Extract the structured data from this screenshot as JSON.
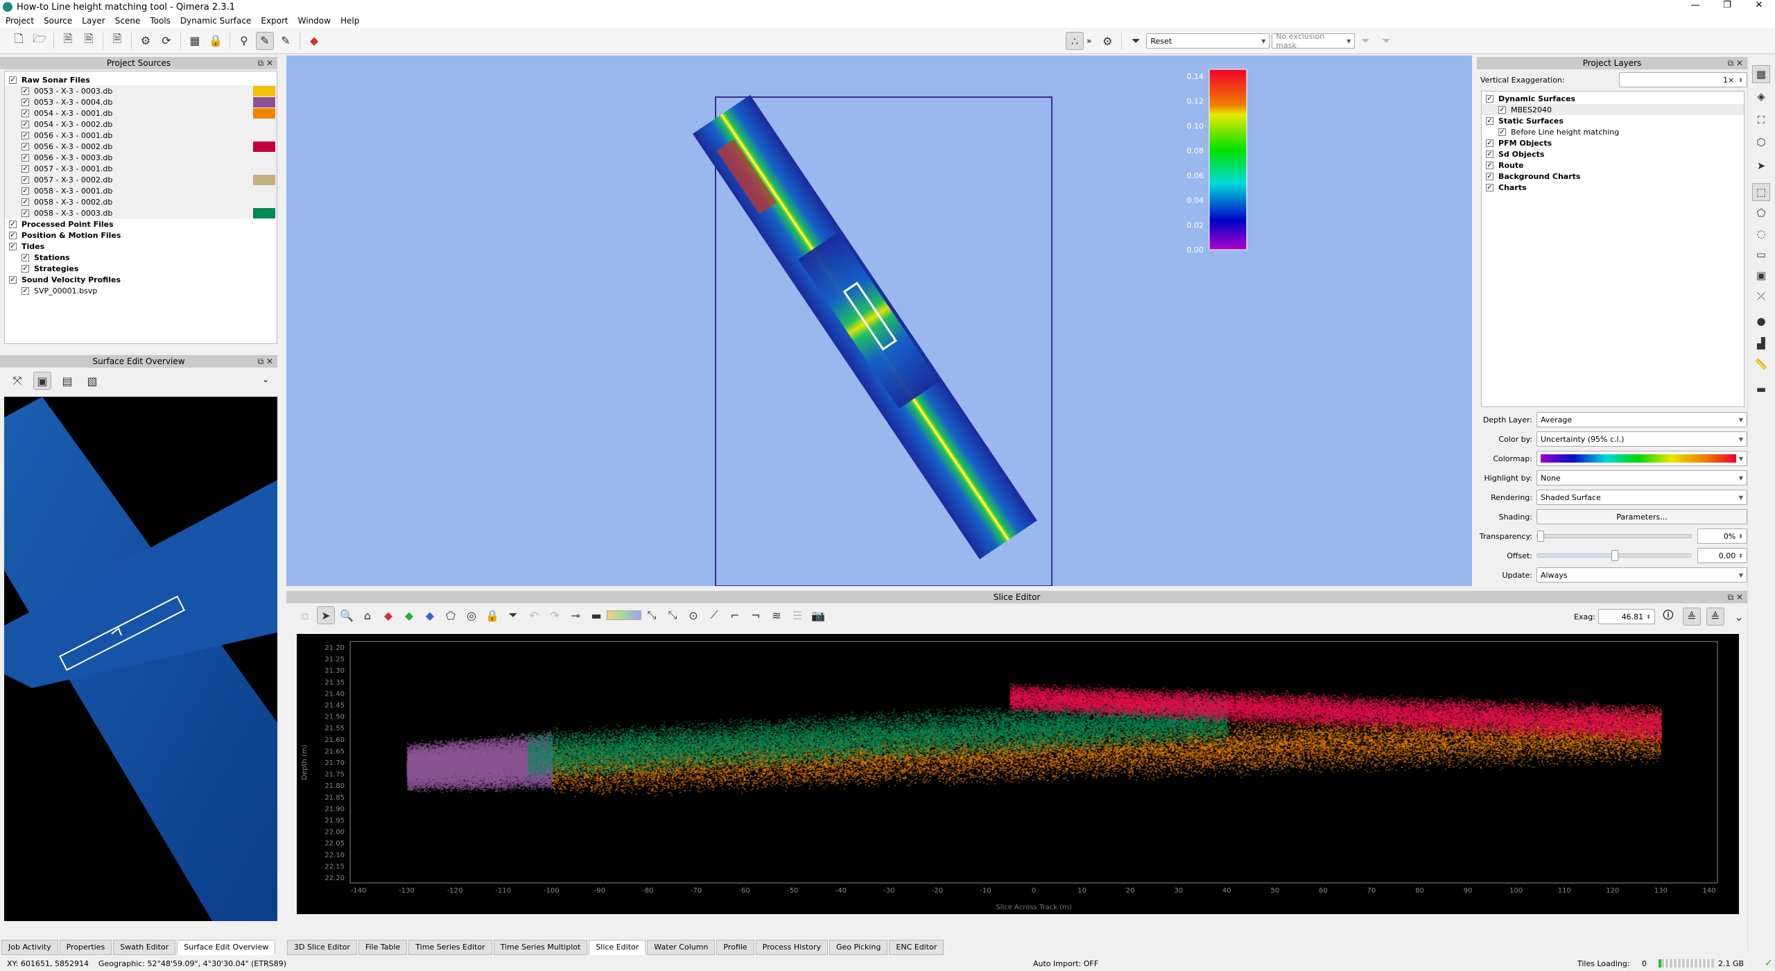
{
  "window": {
    "title": "How-to Line height matching tool - Qimera 2.3.1",
    "controls": [
      "—",
      "❐",
      "✕"
    ]
  },
  "menu": [
    "Project",
    "Source",
    "Layer",
    "Scene",
    "Tools",
    "Dynamic Surface",
    "Export",
    "Window",
    "Help"
  ],
  "toolbar": {
    "filter_value": "Reset",
    "exclusion_mask": "No exclusion mask",
    "more": "»"
  },
  "project_sources": {
    "title": "Project Sources",
    "raw_label": "Raw Sonar Files",
    "files": [
      {
        "name": "0053 - X-3 - 0003.db",
        "color": "#f2c200"
      },
      {
        "name": "0053 - X-3 - 0004.db",
        "color": "#8a5493"
      },
      {
        "name": "0054 - X-3 - 0001.db",
        "color": "#f08400"
      },
      {
        "name": "0054 - X-3 - 0002.db",
        "color": ""
      },
      {
        "name": "0056 - X-3 - 0001.db",
        "color": ""
      },
      {
        "name": "0056 - X-3 - 0002.db",
        "color": "#c2003a"
      },
      {
        "name": "0056 - X-3 - 0003.db",
        "color": ""
      },
      {
        "name": "0057 - X-3 - 0001.db",
        "color": ""
      },
      {
        "name": "0057 - X-3 - 0002.db",
        "color": "#c2b080"
      },
      {
        "name": "0058 - X-3 - 0001.db",
        "color": ""
      },
      {
        "name": "0058 - X-3 - 0002.db",
        "color": ""
      },
      {
        "name": "0058 - X-3 - 0003.db",
        "color": "#008a55"
      }
    ],
    "processed": "Processed Point Files",
    "position": "Position & Motion Files",
    "tides": "Tides",
    "stations": "Stations",
    "strategies": "Strategies",
    "svp": "Sound Velocity Profiles",
    "svp_file": "SVP_00001.bsvp"
  },
  "surface_overview": {
    "title": "Surface Edit Overview"
  },
  "colorbar": {
    "ticks": [
      "0.14",
      "0.12",
      "0.10",
      "0.08",
      "0.06",
      "0.04",
      "0.02",
      "0.00"
    ]
  },
  "project_layers": {
    "title": "Project Layers",
    "vert_exag_label": "Vertical Exaggeration:",
    "vert_exag_value": "1×",
    "items": [
      {
        "label": "Dynamic Surfaces",
        "bold": true,
        "indent": 0
      },
      {
        "label": "MBES2040",
        "bold": false,
        "indent": 1
      },
      {
        "label": "Static Surfaces",
        "bold": true,
        "indent": 0
      },
      {
        "label": "Before Line height matching",
        "bold": false,
        "indent": 1
      },
      {
        "label": "PFM Objects",
        "bold": true,
        "indent": 0
      },
      {
        "label": "Sd Objects",
        "bold": true,
        "indent": 0
      },
      {
        "label": "Route",
        "bold": true,
        "indent": 0
      },
      {
        "label": "Background Charts",
        "bold": true,
        "indent": 0
      },
      {
        "label": "Charts",
        "bold": true,
        "indent": 0
      }
    ],
    "depth_layer_label": "Depth Layer:",
    "depth_layer": "Average",
    "color_by_label": "Color by:",
    "color_by": "Uncertainty (95% c.l.)",
    "colormap_label": "Colormap:",
    "highlight_label": "Highlight by:",
    "highlight": "None",
    "rendering_label": "Rendering:",
    "rendering": "Shaded Surface",
    "shading_label": "Shading:",
    "shading_button": "Parameters...",
    "transparency_label": "Transparency:",
    "transparency": "0%",
    "transparency_pct": 0,
    "offset_label": "Offset:",
    "offset": "0.00",
    "update_label": "Update:",
    "update": "Always"
  },
  "slice_editor": {
    "title": "Slice Editor",
    "exag_label": "Exag:",
    "exag_value": "46.81"
  },
  "chart_data": {
    "type": "scatter",
    "xlabel": "Slice Across Track (m)",
    "ylabel": "Depth (m)",
    "xlim": [
      -140,
      140
    ],
    "ylim": [
      21.2,
      22.2
    ],
    "y_inverted": true,
    "xticks": [
      "-140",
      "-130",
      "-120",
      "-110",
      "-100",
      "-90",
      "-80",
      "-70",
      "-60",
      "-50",
      "-40",
      "-30",
      "-20",
      "-10",
      "0",
      "10",
      "20",
      "30",
      "40",
      "50",
      "60",
      "70",
      "80",
      "90",
      "100",
      "110",
      "120",
      "130",
      "140"
    ],
    "yticks": [
      "21.20",
      "21.25",
      "21.30",
      "21.35",
      "21.40",
      "21.45",
      "21.50",
      "21.55",
      "21.60",
      "21.65",
      "21.70",
      "21.75",
      "21.80",
      "21.85",
      "21.90",
      "21.95",
      "22.00",
      "22.05",
      "22.10",
      "22.15",
      "22.20"
    ],
    "series": [
      {
        "color": "#8a5493",
        "x": [
          -130,
          -100
        ],
        "depth_top": [
          21.62,
          21.57
        ],
        "depth_bottom": [
          21.82,
          21.82
        ]
      },
      {
        "color": "#f08400",
        "x": [
          -100,
          130
        ],
        "depth_top": [
          21.6,
          21.45
        ],
        "depth_bottom": [
          21.85,
          21.7
        ]
      },
      {
        "color": "#008a55",
        "x": [
          -105,
          40
        ],
        "depth_top": [
          21.56,
          21.4
        ],
        "depth_bottom": [
          21.78,
          21.62
        ]
      },
      {
        "color": "#e0104a",
        "x": [
          -5,
          130
        ],
        "depth_top": [
          21.36,
          21.45
        ],
        "depth_bottom": [
          21.48,
          21.62
        ]
      }
    ]
  },
  "bottom_tabs_left": [
    "Job Activity",
    "Properties",
    "Swath Editor",
    "Surface Edit Overview"
  ],
  "bottom_tabs_main": [
    "3D Slice Editor",
    "File Table",
    "Time Series Editor",
    "Time Series Multiplot",
    "Slice Editor",
    "Water Column",
    "Profile",
    "Process History",
    "Geo Picking",
    "ENC Editor"
  ],
  "status": {
    "xy": "XY: 601651, 5852914",
    "geo": "Geographic: 52°48'59.09\", 4°30'30.04\" (ETRS89)",
    "auto_import": "Auto Import: OFF",
    "tiles_label": "Tiles Loading:",
    "tiles": "0",
    "memory": "2.1 GB"
  }
}
